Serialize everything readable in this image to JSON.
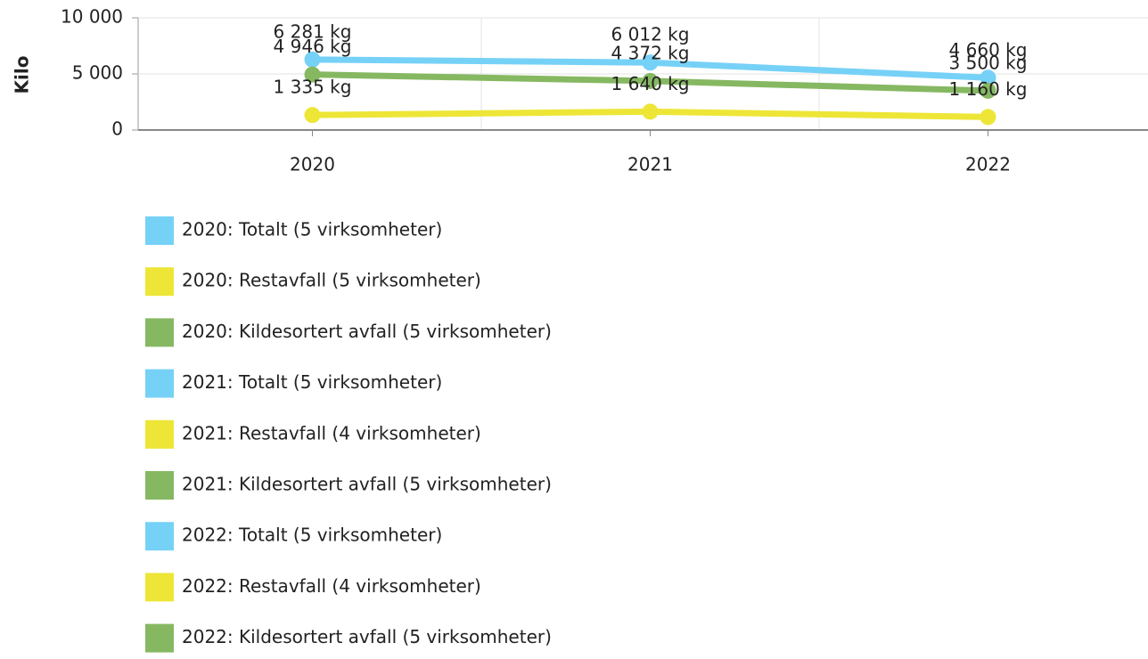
{
  "chart_data": {
    "type": "line",
    "ylabel": "Kilo",
    "categories": [
      "2020",
      "2021",
      "2022"
    ],
    "series": [
      {
        "name": "Totalt",
        "color": "#76d1f7",
        "values": [
          6281,
          6012,
          4660
        ],
        "value_labels": [
          "6 281 kg",
          "6 012 kg",
          "4 660 kg"
        ]
      },
      {
        "name": "Restavfall",
        "color": "#ede637",
        "values": [
          1335,
          1640,
          1160
        ],
        "value_labels": [
          "1 335 kg",
          "1 640 kg",
          "1 160 kg"
        ]
      },
      {
        "name": "Kildesortert avfall",
        "color": "#86b862",
        "values": [
          4946,
          4372,
          3500
        ],
        "value_labels": [
          "4 946 kg",
          "4 372 kg",
          "3 500 kg"
        ]
      }
    ],
    "ylim": [
      0,
      10000
    ],
    "yticks": [
      0,
      {
        "value": 5000,
        "label": "5 000"
      },
      {
        "value": 10000,
        "label": "10 000"
      }
    ],
    "grid": true,
    "legend": [
      {
        "label": "2020: Totalt (5 virksomheter)",
        "color": "#76d1f7"
      },
      {
        "label": "2020: Restavfall (5 virksomheter)",
        "color": "#ede637"
      },
      {
        "label": "2020: Kildesortert avfall (5 virksomheter)",
        "color": "#86b862"
      },
      {
        "label": "2021: Totalt (5 virksomheter)",
        "color": "#76d1f7"
      },
      {
        "label": "2021: Restavfall (4 virksomheter)",
        "color": "#ede637"
      },
      {
        "label": "2021: Kildesortert avfall (5 virksomheter)",
        "color": "#86b862"
      },
      {
        "label": "2022: Totalt (5 virksomheter)",
        "color": "#76d1f7"
      },
      {
        "label": "2022: Restavfall (4 virksomheter)",
        "color": "#ede637"
      },
      {
        "label": "2022: Kildesortert avfall (5 virksomheter)",
        "color": "#86b862"
      }
    ]
  }
}
